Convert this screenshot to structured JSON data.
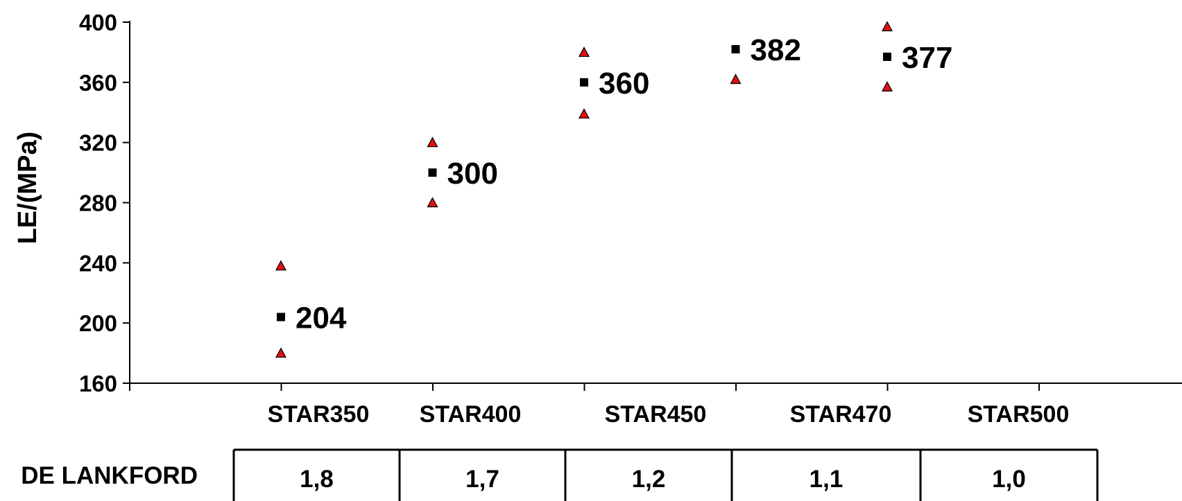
{
  "chart_data": {
    "type": "scatter",
    "ylabel": "LE/(MPa)",
    "xlabel": "",
    "ylim": [
      160,
      400
    ],
    "yticks": [
      160,
      200,
      240,
      280,
      320,
      360,
      400
    ],
    "categories": [
      "STAR350",
      "STAR400",
      "STAR450",
      "STAR470",
      "STAR500"
    ],
    "series": [
      {
        "marker": "square",
        "color": "#000000",
        "values": [
          204,
          300,
          360,
          382,
          377
        ]
      },
      {
        "marker": "triangle",
        "color": "#e01010",
        "values": [
          238,
          320,
          380,
          null,
          397
        ]
      },
      {
        "marker": "triangle",
        "color": "#e01010",
        "values": [
          180,
          280,
          339,
          362,
          357
        ]
      }
    ],
    "data_labels": [
      "204",
      "300",
      "360",
      "382",
      "377"
    ],
    "grid": false,
    "legend": "none"
  },
  "table": {
    "label": "DE LANKFORD",
    "values": [
      "1,8",
      "1,7",
      "1,2",
      "1,1",
      "1,0"
    ]
  }
}
